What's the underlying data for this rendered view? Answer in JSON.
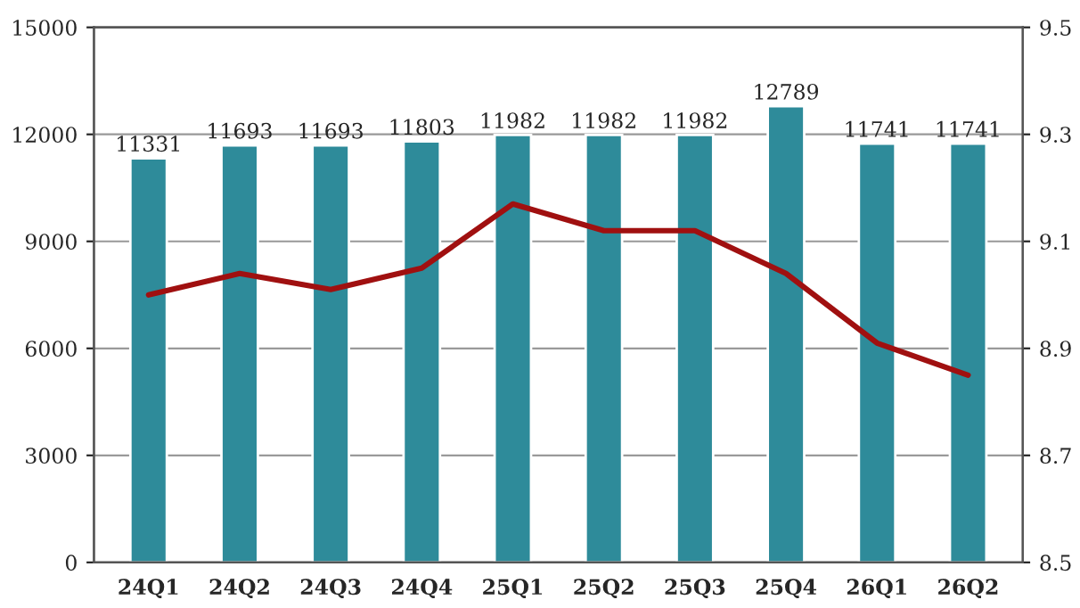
{
  "chart_data": {
    "type": "bar",
    "categories": [
      "24Q1",
      "24Q2",
      "24Q3",
      "24Q4",
      "25Q1",
      "25Q2",
      "25Q3",
      "25Q4",
      "26Q1",
      "26Q2"
    ],
    "series": [
      {
        "color": "#2e8b9a",
        "values": [
          11331,
          11693,
          11693,
          11803,
          11982,
          11982,
          11982,
          12789,
          11741,
          11741
        ],
        "data_labels": true
      },
      {
        "type": "line",
        "axis": "y2",
        "color": "#a01010",
        "values": [
          9.0,
          9.04,
          9.01,
          9.05,
          9.17,
          9.12,
          9.12,
          9.04,
          8.91,
          8.85
        ]
      }
    ],
    "ylim": [
      0,
      15000
    ],
    "yticks": [
      0,
      3000,
      6000,
      9000,
      12000,
      15000
    ],
    "y2lim": [
      8.5,
      9.5
    ],
    "y2ticks": [
      {
        "value": 8.5,
        "label": "8.5"
      },
      {
        "value": 8.7,
        "label": "8.7"
      },
      {
        "value": 8.9,
        "label": "8.9"
      },
      {
        "value": 9.1,
        "label": "9.1"
      },
      {
        "value": 9.3,
        "label": "9.3"
      },
      {
        "value": 9.5,
        "label": "9.5"
      }
    ],
    "grid": "y",
    "marker": "none",
    "line_style": "solid"
  }
}
